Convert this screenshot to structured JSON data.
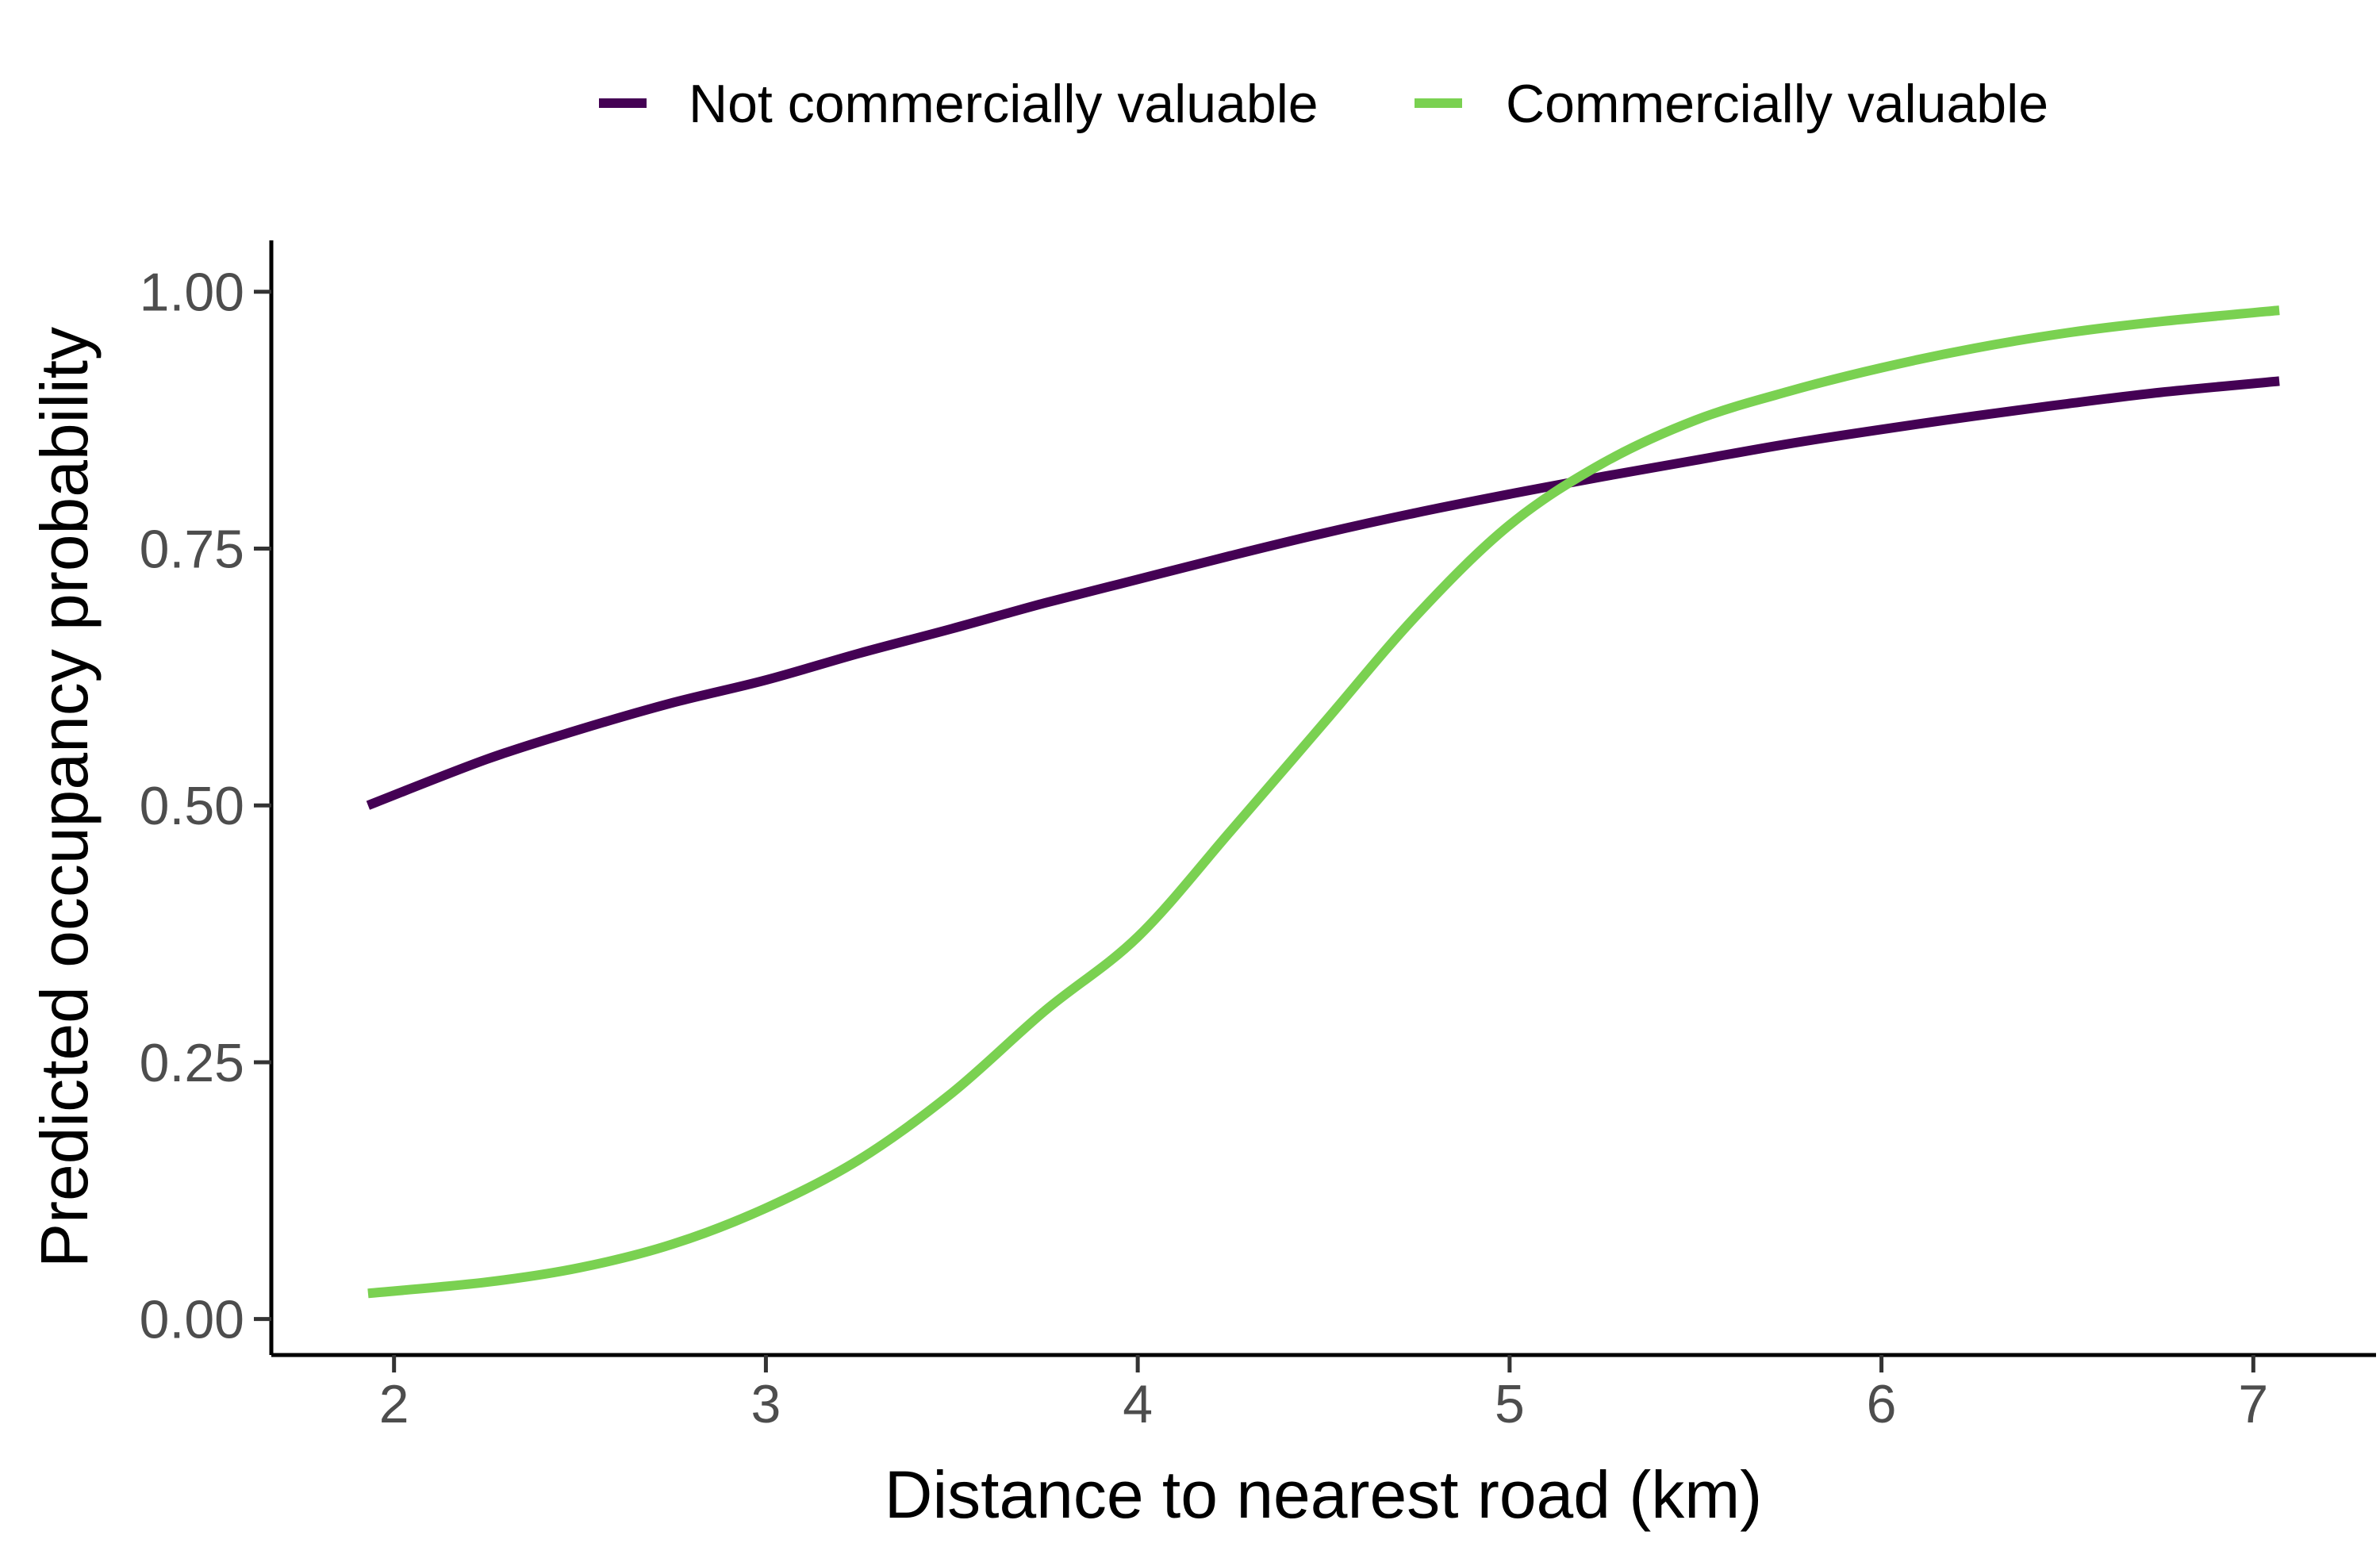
{
  "chart_data": {
    "type": "line",
    "title": "",
    "xlabel": "Distance to nearest road (km)",
    "ylabel": "Predicted occupancy probability",
    "xlim": [
      1.67,
      7.33
    ],
    "ylim": [
      -0.035,
      1.05
    ],
    "xticks": [
      2,
      3,
      4,
      5,
      6,
      7
    ],
    "xtick_labels": [
      "2",
      "3",
      "4",
      "5",
      "6",
      "7"
    ],
    "yticks": [
      0,
      0.25,
      0.5,
      0.75,
      1
    ],
    "ytick_labels": [
      "0.00",
      "0.25",
      "0.50",
      "0.75",
      "1.00"
    ],
    "grid": false,
    "legend_position": "top",
    "series": [
      {
        "name": "Not commercially valuable",
        "color": "#440154",
        "x": [
          1.93,
          2.25,
          2.5,
          2.75,
          3.0,
          3.25,
          3.5,
          3.75,
          4.0,
          4.25,
          4.5,
          4.75,
          5.0,
          5.25,
          5.5,
          5.75,
          6.0,
          6.25,
          6.5,
          6.75,
          7.07
        ],
        "y": [
          0.5,
          0.545,
          0.574,
          0.6,
          0.622,
          0.648,
          0.672,
          0.697,
          0.72,
          0.743,
          0.765,
          0.785,
          0.803,
          0.82,
          0.836,
          0.852,
          0.866,
          0.879,
          0.891,
          0.902,
          0.913
        ]
      },
      {
        "name": "Commercially valuable",
        "color": "#7ad151",
        "x": [
          1.93,
          2.25,
          2.5,
          2.75,
          3.0,
          3.25,
          3.5,
          3.75,
          4.0,
          4.25,
          4.5,
          4.75,
          5.0,
          5.25,
          5.5,
          5.75,
          6.0,
          6.25,
          6.5,
          6.75,
          7.07
        ],
        "y": [
          0.025,
          0.036,
          0.05,
          0.073,
          0.108,
          0.155,
          0.22,
          0.3,
          0.372,
          0.475,
          0.58,
          0.685,
          0.773,
          0.833,
          0.875,
          0.903,
          0.926,
          0.945,
          0.96,
          0.971,
          0.982
        ]
      }
    ]
  }
}
